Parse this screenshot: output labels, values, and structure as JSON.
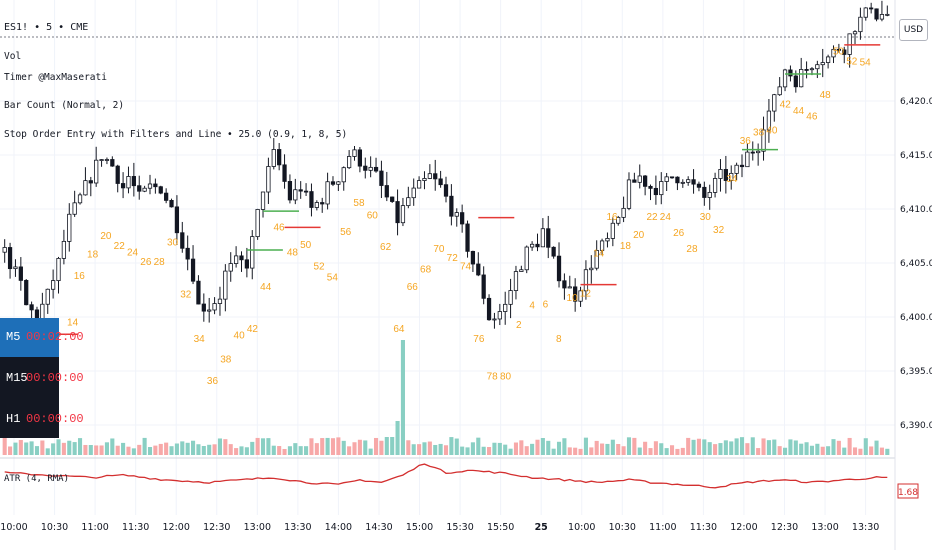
{
  "header": {
    "symbol_line": "ES1! • 5 • CME",
    "indicators": [
      "Vol",
      "Timer @MaxMaserati",
      "Bar Count (Normal, 2)",
      "Stop Order Entry with Filters and Line • 25.0 (0.9, 1, 8, 5)"
    ],
    "currency_button": "USD"
  },
  "timer_panel": [
    {
      "label": "M5",
      "value": "00:02:00",
      "active": true
    },
    {
      "label": "M15",
      "value": "00:00:00",
      "active": false
    },
    {
      "label": "H1",
      "value": "00:00:00",
      "active": false
    }
  ],
  "atr": {
    "label": "ATR (4, RMA)",
    "current_value": "1.68"
  },
  "colors": {
    "up_candle": "#ffffff",
    "down_candle": "#131722",
    "vol_up": "#89cfc3",
    "vol_down": "#f7a8a8",
    "bar_count": "#f5a623",
    "atr_line": "#d32f2f",
    "stop_line_buy": "#4caf50",
    "stop_line_sell": "#e53935",
    "last_price_line": "#787b86"
  },
  "chart_data": {
    "type": "candlestick",
    "price_axis": {
      "ticks": [
        6390,
        6395,
        6400,
        6405,
        6410,
        6415,
        6420
      ],
      "tick_labels": [
        "6,390.00",
        "6,395.00",
        "6,400.00",
        "6,405.00",
        "6,410.00",
        "6,415.00",
        "6,420.00"
      ]
    },
    "time_axis": {
      "labels": [
        "10:00",
        "10:30",
        "11:00",
        "11:30",
        "12:00",
        "12:30",
        "13:00",
        "13:30",
        "14:00",
        "14:30",
        "15:00",
        "15:30",
        "15:50",
        "25",
        "10:00",
        "10:30",
        "11:00",
        "11:30",
        "12:00",
        "12:30",
        "13:00",
        "13:30"
      ]
    },
    "close_path": [
      [
        0,
        6406
      ],
      [
        3,
        6403
      ],
      [
        4,
        6401
      ],
      [
        6,
        6400
      ],
      [
        8,
        6402
      ],
      [
        10,
        6405
      ],
      [
        12,
        6409
      ],
      [
        14,
        6411
      ],
      [
        16,
        6413
      ],
      [
        18,
        6415
      ],
      [
        20,
        6414
      ],
      [
        22,
        6412
      ],
      [
        23,
        6413
      ],
      [
        25,
        6411
      ],
      [
        27,
        6412
      ],
      [
        29,
        6412
      ],
      [
        31,
        6410
      ],
      [
        33,
        6407
      ],
      [
        35,
        6404
      ],
      [
        36,
        6401
      ],
      [
        38,
        6401
      ],
      [
        40,
        6402
      ],
      [
        41,
        6404
      ],
      [
        43,
        6405
      ],
      [
        45,
        6405
      ],
      [
        46,
        6407
      ],
      [
        48,
        6412
      ],
      [
        50,
        6415
      ],
      [
        51,
        6414
      ],
      [
        53,
        6411
      ],
      [
        55,
        6412
      ],
      [
        57,
        6410
      ],
      [
        59,
        6411
      ],
      [
        60,
        6412
      ],
      [
        62,
        6413
      ],
      [
        64,
        6415
      ],
      [
        65,
        6415
      ],
      [
        67,
        6414
      ],
      [
        69,
        6413
      ],
      [
        71,
        6411
      ],
      [
        73,
        6409
      ],
      [
        75,
        6411
      ],
      [
        77,
        6412
      ],
      [
        79,
        6413
      ],
      [
        81,
        6412
      ],
      [
        83,
        6410
      ],
      [
        85,
        6408
      ],
      [
        87,
        6405
      ],
      [
        89,
        6402
      ],
      [
        90,
        6400
      ],
      [
        91,
        6400
      ],
      [
        93,
        6401
      ],
      [
        95,
        6404
      ],
      [
        97,
        6406
      ],
      [
        99,
        6407
      ],
      [
        100,
        6408
      ],
      [
        101,
        6406
      ],
      [
        104,
        6403
      ],
      [
        106,
        6402
      ],
      [
        108,
        6404
      ],
      [
        110,
        6406
      ],
      [
        112,
        6407
      ],
      [
        114,
        6409
      ],
      [
        116,
        6412
      ],
      [
        118,
        6413
      ],
      [
        120,
        6412
      ],
      [
        122,
        6412
      ],
      [
        124,
        6413
      ],
      [
        126,
        6413
      ],
      [
        128,
        6412
      ],
      [
        130,
        6411
      ],
      [
        133,
        6413
      ],
      [
        135,
        6413
      ],
      [
        137,
        6414
      ],
      [
        138,
        6415
      ],
      [
        140,
        6416
      ],
      [
        141,
        6418
      ],
      [
        143,
        6420
      ],
      [
        145,
        6423
      ],
      [
        147,
        6422
      ],
      [
        149,
        6423
      ],
      [
        151,
        6424
      ],
      [
        153,
        6424
      ],
      [
        155,
        6425
      ],
      [
        156,
        6425
      ],
      [
        158,
        6427
      ],
      [
        160,
        6428
      ],
      [
        161,
        6429
      ],
      [
        162,
        6428
      ],
      [
        164,
        6428
      ]
    ],
    "last_price": 6428,
    "bar_counts": [
      {
        "label": "14",
        "bar": 10,
        "price": 6399.2
      },
      {
        "label": "16",
        "bar": 11,
        "price": 6403.5
      },
      {
        "label": "18",
        "bar": 13,
        "price": 6405.5
      },
      {
        "label": "20",
        "bar": 15,
        "price": 6407.2
      },
      {
        "label": "22",
        "bar": 17,
        "price": 6406.3
      },
      {
        "label": "24",
        "bar": 19,
        "price": 6405.7
      },
      {
        "label": "26",
        "bar": 21,
        "price": 6404.8
      },
      {
        "label": "28",
        "bar": 23,
        "price": 6404.8
      },
      {
        "label": "30",
        "bar": 25,
        "price": 6406.6
      },
      {
        "label": "32",
        "bar": 27,
        "price": 6401.8
      },
      {
        "label": "34",
        "bar": 29,
        "price": 6397.7
      },
      {
        "label": "36",
        "bar": 31,
        "price": 6393.8
      },
      {
        "label": "38",
        "bar": 33,
        "price": 6395.8
      },
      {
        "label": "40",
        "bar": 35,
        "price": 6398.0
      },
      {
        "label": "42",
        "bar": 37,
        "price": 6398.6
      },
      {
        "label": "44",
        "bar": 39,
        "price": 6402.5
      },
      {
        "label": "46",
        "bar": 41,
        "price": 6408.0
      },
      {
        "label": "48",
        "bar": 43,
        "price": 6405.7
      },
      {
        "label": "50",
        "bar": 45,
        "price": 6406.4
      },
      {
        "label": "52",
        "bar": 47,
        "price": 6404.4
      },
      {
        "label": "54",
        "bar": 49,
        "price": 6403.4
      },
      {
        "label": "56",
        "bar": 51,
        "price": 6407.6
      },
      {
        "label": "58",
        "bar": 53,
        "price": 6410.3
      },
      {
        "label": "60",
        "bar": 55,
        "price": 6409.1
      },
      {
        "label": "62",
        "bar": 57,
        "price": 6406.2
      },
      {
        "label": "64",
        "bar": 59,
        "price": 6398.6
      },
      {
        "label": "66",
        "bar": 61,
        "price": 6402.5
      },
      {
        "label": "68",
        "bar": 63,
        "price": 6404.1
      },
      {
        "label": "70",
        "bar": 65,
        "price": 6406.0
      },
      {
        "label": "72",
        "bar": 67,
        "price": 6405.2
      },
      {
        "label": "74",
        "bar": 69,
        "price": 6404.4
      },
      {
        "label": "76",
        "bar": 71,
        "price": 6397.7
      },
      {
        "label": "78",
        "bar": 73,
        "price": 6394.2
      },
      {
        "label": "80",
        "bar": 75,
        "price": 6394.2
      },
      {
        "label": "2",
        "bar": 77,
        "price": 6399.0
      },
      {
        "label": "4",
        "bar": 79,
        "price": 6400.8
      },
      {
        "label": "6",
        "bar": 81,
        "price": 6400.9
      },
      {
        "label": "8",
        "bar": 83,
        "price": 6397.7
      },
      {
        "label": "10",
        "bar": 85,
        "price": 6401.5
      },
      {
        "label": "12",
        "bar": 87,
        "price": 6401.9
      },
      {
        "label": "14",
        "bar": 89,
        "price": 6405.6
      },
      {
        "label": "16",
        "bar": 91,
        "price": 6409.0
      },
      {
        "label": "18",
        "bar": 93,
        "price": 6406.3
      },
      {
        "label": "20",
        "bar": 95,
        "price": 6407.3
      },
      {
        "label": "22",
        "bar": 97,
        "price": 6409.0
      },
      {
        "label": "24",
        "bar": 99,
        "price": 6409.0
      },
      {
        "label": "26",
        "bar": 101,
        "price": 6407.5
      },
      {
        "label": "28",
        "bar": 103,
        "price": 6406.0
      },
      {
        "label": "30",
        "bar": 105,
        "price": 6409.0
      },
      {
        "label": "32",
        "bar": 107,
        "price": 6407.8
      },
      {
        "label": "34",
        "bar": 109,
        "price": 6412.5
      },
      {
        "label": "36",
        "bar": 111,
        "price": 6416.0
      },
      {
        "label": "38",
        "bar": 113,
        "price": 6416.8
      },
      {
        "label": "40",
        "bar": 115,
        "price": 6417.0
      },
      {
        "label": "42",
        "bar": 117,
        "price": 6419.4
      },
      {
        "label": "44",
        "bar": 119,
        "price": 6418.8
      },
      {
        "label": "46",
        "bar": 121,
        "price": 6418.3
      },
      {
        "label": "48",
        "bar": 123,
        "price": 6420.3
      },
      {
        "label": "50",
        "bar": 125,
        "price": 6424.3
      },
      {
        "label": "52",
        "bar": 127,
        "price": 6423.4
      },
      {
        "label": "54",
        "bar": 129,
        "price": 6423.3
      }
    ],
    "atr_path": [
      [
        0,
        1.9
      ],
      [
        8,
        1.8
      ],
      [
        16,
        1.7
      ],
      [
        22,
        1.8
      ],
      [
        30,
        1.6
      ],
      [
        38,
        1.5
      ],
      [
        44,
        1.6
      ],
      [
        50,
        1.7
      ],
      [
        56,
        1.5
      ],
      [
        62,
        1.4
      ],
      [
        66,
        1.6
      ],
      [
        70,
        1.5
      ],
      [
        74,
        1.8
      ],
      [
        78,
        2.3
      ],
      [
        82,
        1.9
      ],
      [
        86,
        2.0
      ],
      [
        92,
        1.9
      ],
      [
        98,
        1.7
      ],
      [
        104,
        1.6
      ],
      [
        110,
        1.5
      ],
      [
        116,
        1.6
      ],
      [
        120,
        1.5
      ],
      [
        126,
        1.4
      ],
      [
        132,
        1.3
      ],
      [
        138,
        1.5
      ],
      [
        144,
        1.6
      ],
      [
        150,
        1.5
      ],
      [
        156,
        1.6
      ],
      [
        162,
        1.7
      ],
      [
        164,
        1.68
      ]
    ]
  }
}
